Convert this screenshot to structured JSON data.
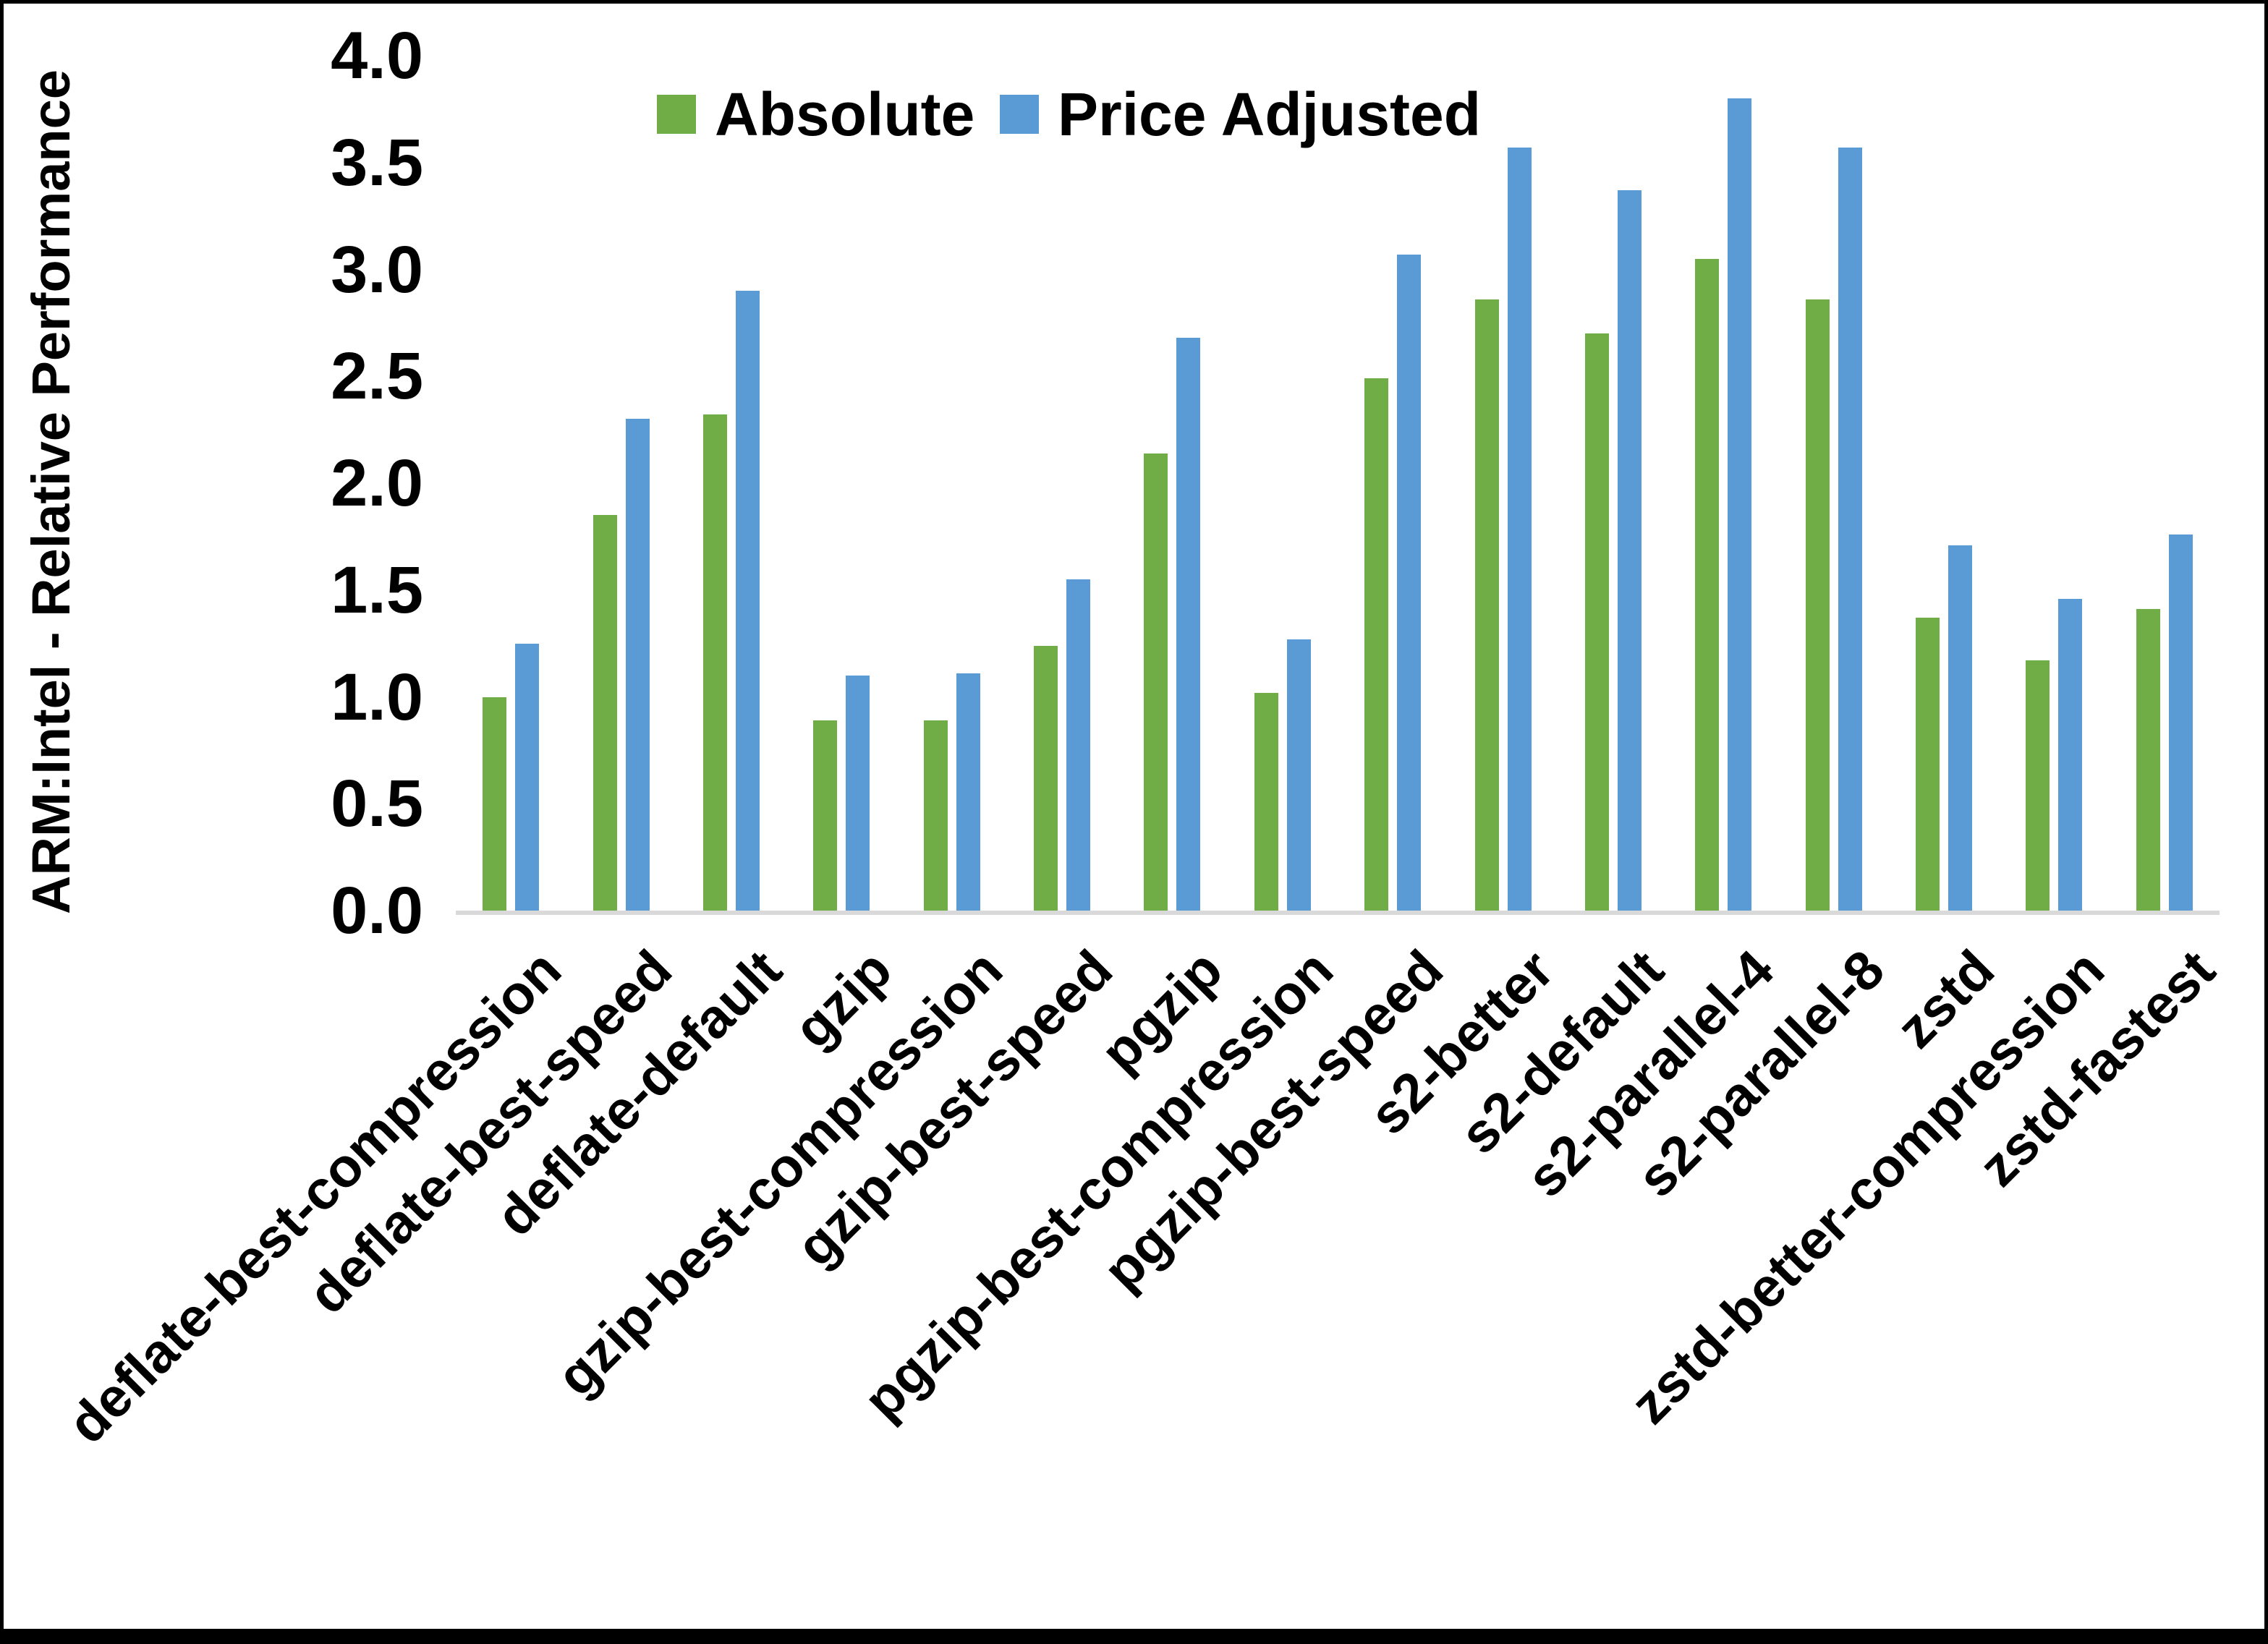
{
  "chart_data": {
    "type": "bar",
    "title": "",
    "xlabel": "",
    "ylabel": "ARM:Intel - Relative Performance",
    "ylim": [
      0,
      4
    ],
    "grid": false,
    "legend_position": "top-center",
    "yticks": [
      {
        "label": "0.0",
        "value": 0.0
      },
      {
        "label": "0.5",
        "value": 0.5
      },
      {
        "label": "1.0",
        "value": 1.0
      },
      {
        "label": "1.5",
        "value": 1.5
      },
      {
        "label": "2.0",
        "value": 2.0
      },
      {
        "label": "2.5",
        "value": 2.5
      },
      {
        "label": "3.0",
        "value": 3.0
      },
      {
        "label": "3.5",
        "value": 3.5
      },
      {
        "label": "4.0",
        "value": 4.0
      }
    ],
    "categories": [
      "deflate-best-compression",
      "deflate-best-speed",
      "deflate-default",
      "gzip",
      "gzip-best-compression",
      "gzip-best-speed",
      "pgzip",
      "pgzip-best-compression",
      "pgzip-best-speed",
      "s2-better",
      "s2-default",
      "s2-parallel-4",
      "s2-parallel-8",
      "zstd",
      "zstd-better-compression",
      "zstd-fastest"
    ],
    "series": [
      {
        "name": "Absolute",
        "color": "#70AD47",
        "values": [
          1.0,
          1.85,
          2.32,
          0.89,
          0.89,
          1.24,
          2.14,
          1.02,
          2.49,
          2.86,
          2.7,
          3.05,
          2.86,
          1.37,
          1.17,
          1.41
        ]
      },
      {
        "name": "Price Adjusted",
        "color": "#5B9BD5",
        "values": [
          1.25,
          2.3,
          2.9,
          1.1,
          1.11,
          1.55,
          2.68,
          1.27,
          3.07,
          3.57,
          3.37,
          3.8,
          3.57,
          1.71,
          1.46,
          1.76
        ]
      }
    ]
  },
  "colors": {
    "absolute": "#70AD47",
    "price_adjusted": "#5B9BD5",
    "axis_line": "#D9D9D9",
    "text": "#000000",
    "frame": "#000000",
    "background": "#FFFFFF"
  }
}
